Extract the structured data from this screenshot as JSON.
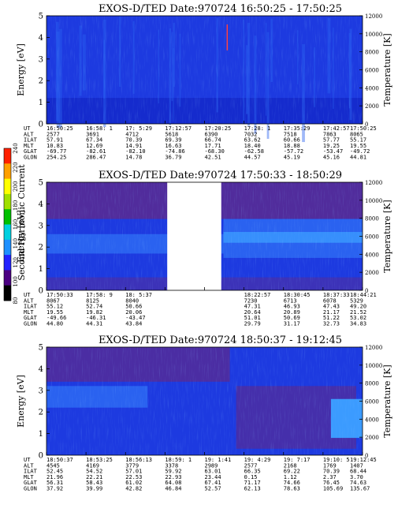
{
  "colors": {
    "plot_bg": "#1d3ae0",
    "band_dark": "#1428c8",
    "band_mid": "#2a62f0",
    "band_light": "#3b9bff",
    "purple": "#5b2a8f",
    "colorbar": [
      "#000000",
      "#4b0082",
      "#2222ff",
      "#1e90ff",
      "#00d0e0",
      "#00c000",
      "#a0e000",
      "#ffff00",
      "#ffa000",
      "#ff2000"
    ]
  },
  "colorbar": {
    "label": "Second Harmonic Current",
    "ticks": [
      "80",
      "100",
      "120",
      "140",
      "160",
      "180",
      "200",
      "220",
      "240"
    ]
  },
  "chart_data": [
    {
      "type": "heatmap",
      "title": "EXOS-D/TED   Date:970724   16:50:25 - 17:50:25",
      "ylabel": "Energy [eV]",
      "y2label": "Temperature [K]",
      "ylim": [
        0,
        5
      ],
      "y_ticks": [
        "0",
        "1",
        "2",
        "3",
        "4",
        "5"
      ],
      "y2lim": [
        0,
        12000
      ],
      "y2_ticks": [
        "0",
        "2000",
        "4000",
        "6000",
        "8000",
        "10000",
        "12000"
      ],
      "gaps": [],
      "ephemeris_labels": [
        "UT",
        "ALT",
        "ILAT",
        "MLT",
        "GLAT",
        "GLON"
      ],
      "ephemeris": [
        [
          "16:50:25",
          "2577",
          "57.91",
          "10.83",
          "-69.77",
          "254.25"
        ],
        [
          "16:58: 1",
          "3691",
          "67.34",
          "12.69",
          "-82.61",
          "286.47"
        ],
        [
          "17: 5:29",
          "4712",
          "70.39",
          "14.91",
          "-82.10",
          "14.78"
        ],
        [
          "17:12:57",
          "5618",
          "69.39",
          "16.63",
          "-74.86",
          "36.79"
        ],
        [
          "17:20:25",
          "6390",
          "66.74",
          "17.71",
          "-68.30",
          "42.51"
        ],
        [
          "17:28: 1",
          "7032",
          "63.62",
          "18.40",
          "-62.58",
          "44.57"
        ],
        [
          "17:35:29",
          "7518",
          "60.66",
          "18.88",
          "-57.72",
          "45.19"
        ],
        [
          "17:42:57",
          "7863",
          "57.77",
          "19.25",
          "-53.47",
          "45.16"
        ],
        [
          "17:50:25",
          "8065",
          "55.17",
          "19.55",
          "-49.72",
          "44.81"
        ]
      ]
    },
    {
      "type": "heatmap",
      "title": "EXOS-D/TED   Date:970724   17:50:33 - 18:50:29",
      "ylabel": "Energy [eV]",
      "y2label": "Temperature [K]",
      "ylim": [
        0,
        5
      ],
      "y_ticks": [
        "0",
        "1",
        "2",
        "3",
        "4",
        "5"
      ],
      "y2lim": [
        0,
        12000
      ],
      "y2_ticks": [
        "0",
        "2000",
        "4000",
        "6000",
        "8000",
        "10000",
        "12000"
      ],
      "gaps": [
        [
          0.382,
          0.553
        ]
      ],
      "ephemeris_labels": [
        "UT",
        "ALT",
        "ILAT",
        "MLT",
        "GLAT",
        "GLON"
      ],
      "ephemeris": [
        [
          "17:50:33",
          "8067",
          "55.12",
          "19.55",
          "-49.66",
          "44.80"
        ],
        [
          "17:58: 9",
          "8125",
          "52.74",
          "19.82",
          "-46.31",
          "44.31"
        ],
        [
          "18: 5:37",
          "8040",
          "50.66",
          "20.06",
          "-43.47",
          "43.84"
        ],
        [
          "",
          "",
          "",
          "",
          "",
          ""
        ],
        [
          "",
          "",
          "",
          "",
          "",
          ""
        ],
        [
          "18:22:57",
          "7230",
          "47.31",
          "20.64",
          "51.01",
          "29.79"
        ],
        [
          "18:30:45",
          "6713",
          "46.93",
          "20.89",
          "50.69",
          "31.17"
        ],
        [
          "18:37:33",
          "6078",
          "47.43",
          "21.17",
          "51.22",
          "32.73"
        ],
        [
          "18:44:21",
          "5329",
          "49.20",
          "21.52",
          "53.02",
          "34.83"
        ]
      ]
    },
    {
      "type": "heatmap",
      "title": "EXOS-D/TED   Date:970724   18:50:37 - 19:12:45",
      "ylabel": "Energy [eV]",
      "y2label": "Temperature [K]",
      "ylim": [
        0,
        5
      ],
      "y_ticks": [
        "0",
        "1",
        "2",
        "3",
        "4",
        "5"
      ],
      "y2lim": [
        0,
        12000
      ],
      "y2_ticks": [
        "0",
        "2000",
        "4000",
        "6000",
        "8000",
        "10000",
        "12000"
      ],
      "gaps": [],
      "ephemeris_labels": [
        "UT",
        "ALT",
        "ILAT",
        "MLT",
        "GLAT",
        "GLON"
      ],
      "ephemeris": [
        [
          "18:50:37",
          "4545",
          "52.45",
          "21.96",
          "56.31",
          "37.92"
        ],
        [
          "18:53:25",
          "4169",
          "54.52",
          "22.21",
          "58.43",
          "39.99"
        ],
        [
          "18:56:13",
          "3779",
          "57.01",
          "22.53",
          "61.02",
          "42.82"
        ],
        [
          "18:59: 1",
          "3378",
          "59.92",
          "22.93",
          "64.08",
          "46.84"
        ],
        [
          "19: 1:41",
          "2989",
          "63.01",
          "23.44",
          "67.41",
          "52.57"
        ],
        [
          "19: 4:29",
          "2577",
          "66.35",
          "0.15",
          "71.17",
          "62.13"
        ],
        [
          "19: 7:17",
          "2168",
          "69.22",
          "1.12",
          "74.66",
          "78.63"
        ],
        [
          "19:10: 5",
          "1769",
          "70.39",
          "2.37",
          "76.45",
          "105.69"
        ],
        [
          "19:12:45",
          "1407",
          "68.44",
          "3.70",
          "74.63",
          "135.67"
        ]
      ]
    }
  ]
}
